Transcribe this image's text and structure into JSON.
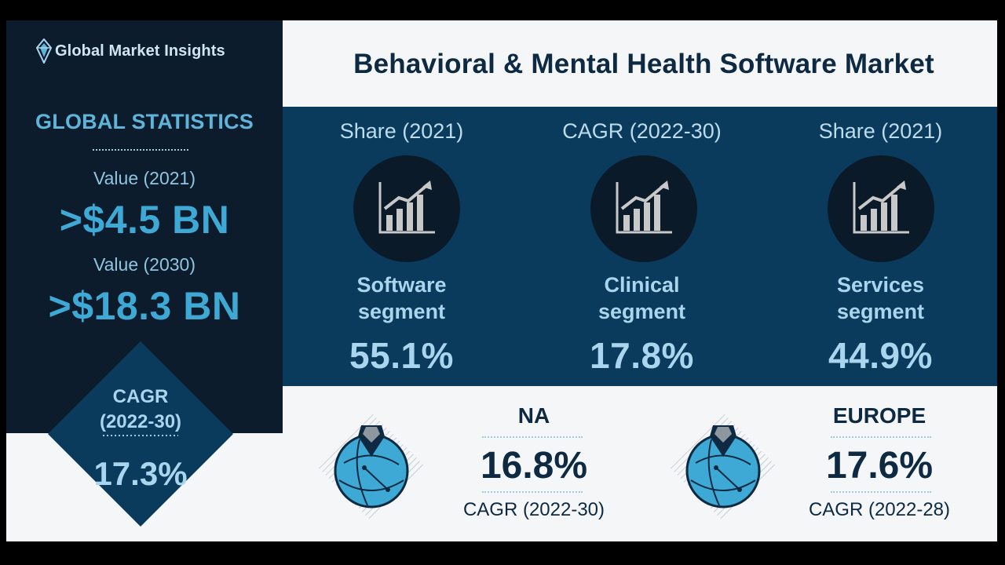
{
  "brand": {
    "name": "Global Market Insights"
  },
  "title": "Behavioral & Mental Health Software Market",
  "global_statistics": {
    "heading": "GLOBAL STATISTICS",
    "value_2021_label": "Value (2021)",
    "value_2021": ">$4.5 BN",
    "value_2030_label": "Value (2030)",
    "value_2030": ">$18.3 BN",
    "cagr_label": "CAGR",
    "cagr_period": "(2022-30)",
    "cagr_value": "17.3%"
  },
  "segments": [
    {
      "metric": "Share (2021)",
      "name_line1": "Software",
      "name_line2": "segment",
      "value": "55.1%"
    },
    {
      "metric": "CAGR (2022-30)",
      "name_line1": "Clinical",
      "name_line2": "segment",
      "value": "17.8%"
    },
    {
      "metric": "Share (2021)",
      "name_line1": "Services",
      "name_line2": "segment",
      "value": "44.9%"
    }
  ],
  "regions": [
    {
      "name": "NA",
      "value": "16.8%",
      "caption": "CAGR (2022-30)"
    },
    {
      "name": "EUROPE",
      "value": "17.6%",
      "caption": "CAGR (2022-28)"
    }
  ],
  "icons": {
    "logo": "diamond-logo-icon",
    "segment": "growth-chart-icon",
    "region": "globe-location-pin-icon"
  },
  "colors": {
    "navy": "#0c1c2c",
    "teal_band": "#0b3b5c",
    "accent_blue": "#3fa9d6",
    "light_text": "#a9d6ee",
    "dark_text": "#0e2a42",
    "panel": "#f4f6f7"
  }
}
